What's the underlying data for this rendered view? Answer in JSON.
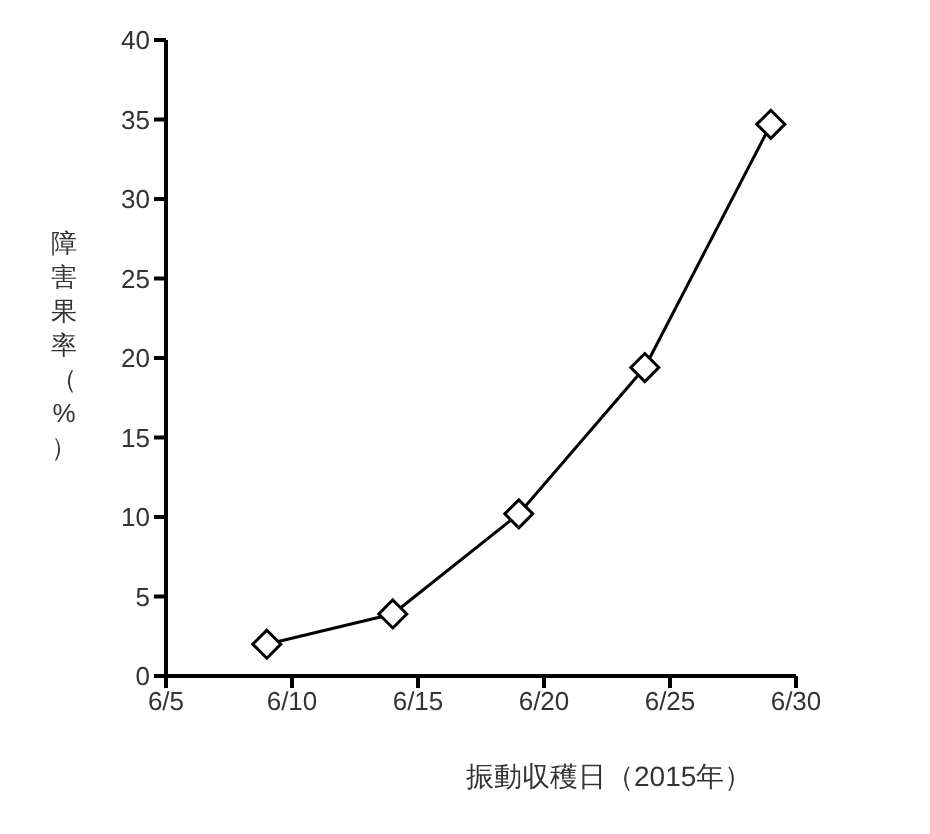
{
  "chart_data": {
    "type": "line",
    "xlabel": "振動収穫日（2015年）",
    "ylabel": "障害果率（%）",
    "x": [
      "2015-06-09",
      "2015-06-14",
      "2015-06-19",
      "2015-06-24",
      "2015-06-29"
    ],
    "series": [
      {
        "color": "#000000",
        "values": [
          2.0,
          3.9,
          10.2,
          19.4,
          34.7
        ]
      }
    ],
    "xlim": [
      "2015-06-05",
      "2015-06-30"
    ],
    "xticks": [
      {
        "value": "2015-06-05",
        "label": "6/5"
      },
      {
        "value": "2015-06-10",
        "label": "6/10"
      },
      {
        "value": "2015-06-15",
        "label": "6/15"
      },
      {
        "value": "2015-06-20",
        "label": "6/20"
      },
      {
        "value": "2015-06-25",
        "label": "6/25"
      },
      {
        "value": "2015-06-30",
        "label": "6/30"
      }
    ],
    "ylim": [
      0,
      40
    ],
    "yticks": [
      0,
      5,
      10,
      15,
      20,
      25,
      30,
      35,
      40
    ],
    "grid": false,
    "legend": false,
    "marker": "diamond",
    "line_style": "solid"
  }
}
